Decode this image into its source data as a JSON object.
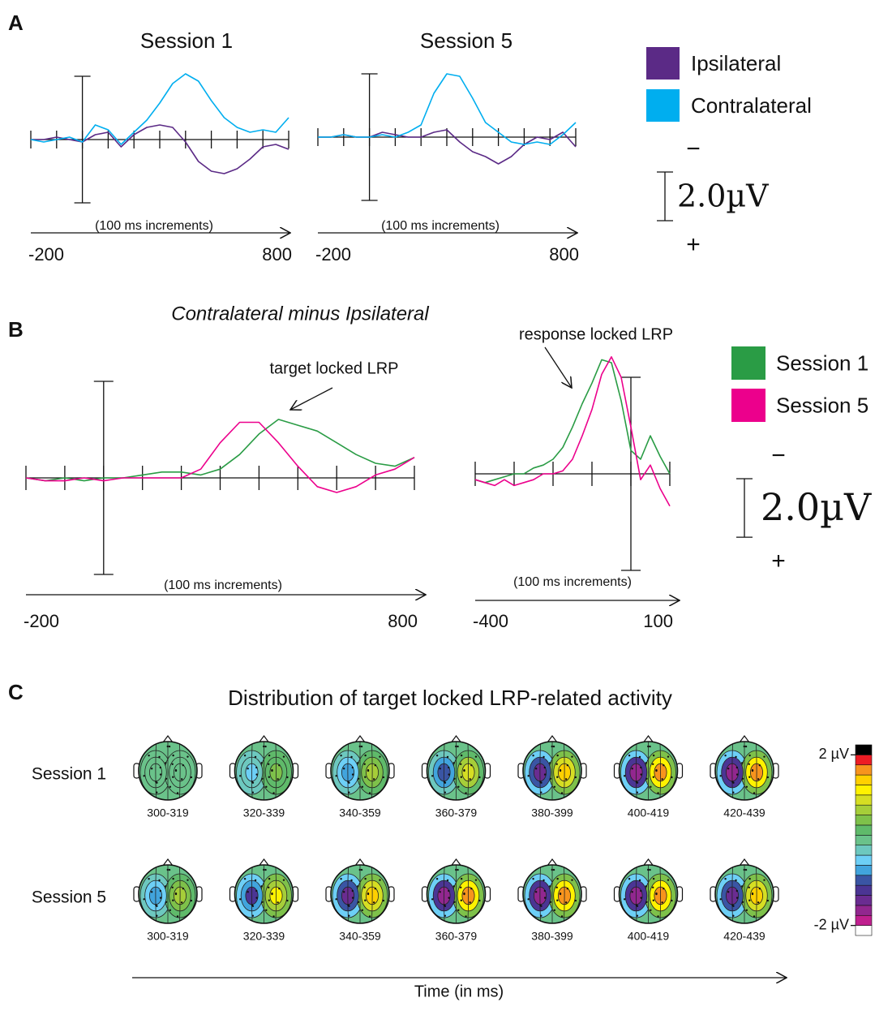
{
  "panel_labels": [
    "A",
    "B",
    "C"
  ],
  "chart_data": [
    {
      "type": "line",
      "title": "Session 1",
      "xlabel": "(100 ms increments)",
      "x": [
        -200,
        -150,
        -100,
        -50,
        0,
        50,
        100,
        150,
        200,
        250,
        300,
        350,
        400,
        450,
        500,
        550,
        600,
        650,
        700,
        750,
        800
      ],
      "xlim": [
        -200,
        800
      ],
      "xticks": [
        -200,
        800
      ],
      "minor_xticks": [
        -100,
        0,
        100,
        200,
        300,
        400,
        500,
        600,
        700
      ],
      "ylim": [
        -2.6,
        2.6
      ],
      "invert_y": true,
      "series": [
        {
          "name": "Ipsilateral",
          "color": "#5b2a86",
          "values": [
            0,
            0,
            -0.1,
            0,
            0.1,
            -0.2,
            -0.3,
            0.3,
            -0.2,
            -0.5,
            -0.6,
            -0.5,
            0.1,
            0.9,
            1.3,
            1.4,
            1.2,
            0.8,
            0.3,
            0.2,
            0.4
          ]
        },
        {
          "name": "Contralateral",
          "color": "#00aeef",
          "values": [
            0,
            0.1,
            0,
            -0.1,
            0.1,
            -0.6,
            -0.4,
            0.2,
            -0.3,
            -0.8,
            -1.5,
            -2.3,
            -2.7,
            -2.4,
            -1.6,
            -0.9,
            -0.5,
            -0.3,
            -0.4,
            -0.3,
            -0.9
          ]
        }
      ],
      "scale_bar": {
        "value": 2.0,
        "label": "2.0µV",
        "top_sign": "−",
        "bottom_sign": "+"
      }
    },
    {
      "type": "line",
      "title": "Session 5",
      "xlabel": "(100 ms increments)",
      "x": [
        -200,
        -150,
        -100,
        -50,
        0,
        50,
        100,
        150,
        200,
        250,
        300,
        350,
        400,
        450,
        500,
        550,
        600,
        650,
        700,
        750,
        800
      ],
      "xlim": [
        -200,
        800
      ],
      "xticks": [
        -200,
        800
      ],
      "minor_xticks": [
        -100,
        0,
        100,
        200,
        300,
        400,
        500,
        600,
        700
      ],
      "ylim": [
        -2.6,
        2.6
      ],
      "invert_y": true,
      "series": [
        {
          "color": "#5b2a86",
          "values": [
            0,
            0,
            -0.1,
            0,
            0,
            -0.2,
            -0.1,
            0,
            0,
            -0.2,
            -0.3,
            0.2,
            0.6,
            0.8,
            1.1,
            0.8,
            0.3,
            0,
            0.1,
            -0.2,
            0.4
          ]
        },
        {
          "color": "#00aeef",
          "values": [
            0,
            0,
            -0.1,
            0,
            0,
            -0.1,
            0,
            -0.2,
            -0.5,
            -1.8,
            -2.6,
            -2.5,
            -1.6,
            -0.6,
            -0.2,
            0.2,
            0.3,
            0.2,
            0.3,
            -0.1,
            -0.6
          ]
        }
      ]
    },
    {
      "type": "line",
      "title": "Contralateral minus Ipsilateral",
      "annotation": "target locked LRP",
      "xlabel": "(100 ms increments)",
      "x": [
        -200,
        -150,
        -100,
        -50,
        0,
        50,
        100,
        150,
        200,
        250,
        300,
        350,
        400,
        450,
        500,
        550,
        600,
        650,
        700,
        750,
        800
      ],
      "xlim": [
        -200,
        800
      ],
      "xticks": [
        -200,
        800
      ],
      "minor_xticks": [
        -100,
        0,
        100,
        200,
        300,
        400,
        500,
        600,
        700
      ],
      "ylim": [
        -3.3,
        3.3
      ],
      "invert_y": true,
      "series": [
        {
          "name": "Session 1",
          "color": "#2a9c45",
          "values": [
            0,
            0.1,
            0,
            0.1,
            0,
            0,
            -0.1,
            -0.2,
            -0.2,
            -0.1,
            -0.3,
            -0.8,
            -1.5,
            -2.0,
            -1.8,
            -1.6,
            -1.2,
            -0.8,
            -0.5,
            -0.4,
            -0.7
          ]
        },
        {
          "name": "Session 5",
          "color": "#ec008c",
          "values": [
            0,
            0.1,
            0.1,
            0,
            0.1,
            0,
            0,
            0,
            0,
            -0.3,
            -1.2,
            -1.9,
            -1.9,
            -1.2,
            -0.4,
            0.3,
            0.5,
            0.3,
            -0.1,
            -0.3,
            -0.7
          ]
        }
      ],
      "scale_bar": {
        "value": 2.0,
        "label": "2.0µV",
        "top_sign": "−",
        "bottom_sign": "+"
      }
    },
    {
      "type": "line",
      "annotation": "response locked LRP",
      "xlabel": "(100 ms increments)",
      "x": [
        -400,
        -375,
        -350,
        -325,
        -300,
        -275,
        -250,
        -225,
        -200,
        -175,
        -150,
        -125,
        -100,
        -75,
        -50,
        -25,
        0,
        25,
        50,
        75,
        100
      ],
      "xlim": [
        -400,
        100
      ],
      "xticks": [
        -400,
        100
      ],
      "minor_xticks": [
        -300,
        -200,
        -100,
        0
      ],
      "ylim": [
        -3.3,
        3.3
      ],
      "invert_y": true,
      "series": [
        {
          "color": "#2a9c45",
          "values": [
            0.2,
            0.3,
            0.2,
            0.1,
            0,
            0,
            -0.2,
            -0.3,
            -0.5,
            -0.9,
            -1.6,
            -2.4,
            -3.1,
            -3.9,
            -3.8,
            -2.5,
            -0.8,
            -0.5,
            -1.3,
            -0.6,
            0
          ]
        },
        {
          "color": "#ec008c",
          "values": [
            0.2,
            0.3,
            0.4,
            0.2,
            0.4,
            0.3,
            0.2,
            0,
            0,
            -0.1,
            -0.5,
            -1.3,
            -2.2,
            -3.4,
            -4.0,
            -3.3,
            -1.6,
            0.2,
            -0.3,
            0.5,
            1.1
          ]
        }
      ]
    },
    {
      "type": "topomap",
      "title": "Distribution of target locked LRP-related activity",
      "xlabel": "Time (in ms)",
      "categories": [
        "300-319",
        "320-339",
        "340-359",
        "360-379",
        "380-399",
        "400-419",
        "420-439"
      ],
      "series": [
        {
          "name": "Session 1",
          "values": [
            0.1,
            0.4,
            0.8,
            1.0,
            1.4,
            1.6,
            1.7
          ]
        },
        {
          "name": "Session 5",
          "values": [
            0.8,
            1.2,
            1.4,
            1.7,
            1.6,
            1.6,
            1.4
          ]
        }
      ],
      "clim": [
        -2,
        2
      ],
      "cticks": [
        {
          "value": 2,
          "label": "2 µV"
        },
        {
          "value": -2,
          "label": "-2 µV"
        }
      ],
      "colormap": [
        "#ffffff",
        "#c0208f",
        "#92278f",
        "#6a2c91",
        "#4b3594",
        "#3a55a4",
        "#41a4dd",
        "#6dcff6",
        "#6dc8bf",
        "#6ac28a",
        "#5fba6a",
        "#7ec14a",
        "#a6ce39",
        "#d6de23",
        "#fff200",
        "#ffd000",
        "#f7941d",
        "#ed1c24",
        "#000000"
      ]
    }
  ]
}
